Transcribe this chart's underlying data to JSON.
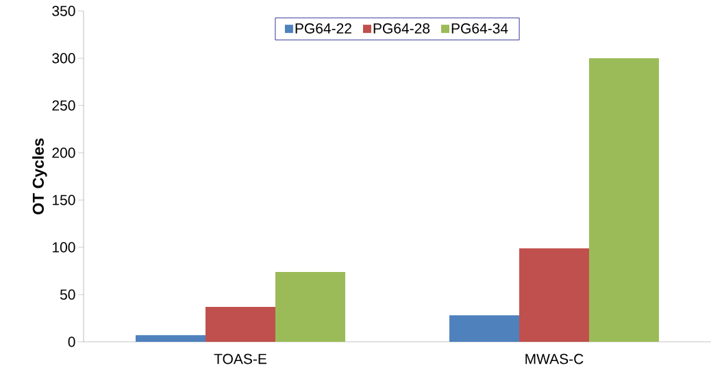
{
  "chart_data": {
    "type": "bar",
    "ylabel": "OT Cycles",
    "categories": [
      "TOAS-E",
      "MWAS-C"
    ],
    "series": [
      {
        "name": "PG64-22",
        "color": "#4f81bd",
        "values": [
          7,
          28
        ]
      },
      {
        "name": "PG64-28",
        "color": "#c0504d",
        "values": [
          37,
          99
        ]
      },
      {
        "name": "PG64-34",
        "color": "#9bbb59",
        "values": [
          74,
          300
        ]
      }
    ],
    "ylim": [
      0,
      350
    ],
    "yticks": [
      0,
      50,
      100,
      150,
      200,
      250,
      300,
      350
    ],
    "legend": "top"
  }
}
